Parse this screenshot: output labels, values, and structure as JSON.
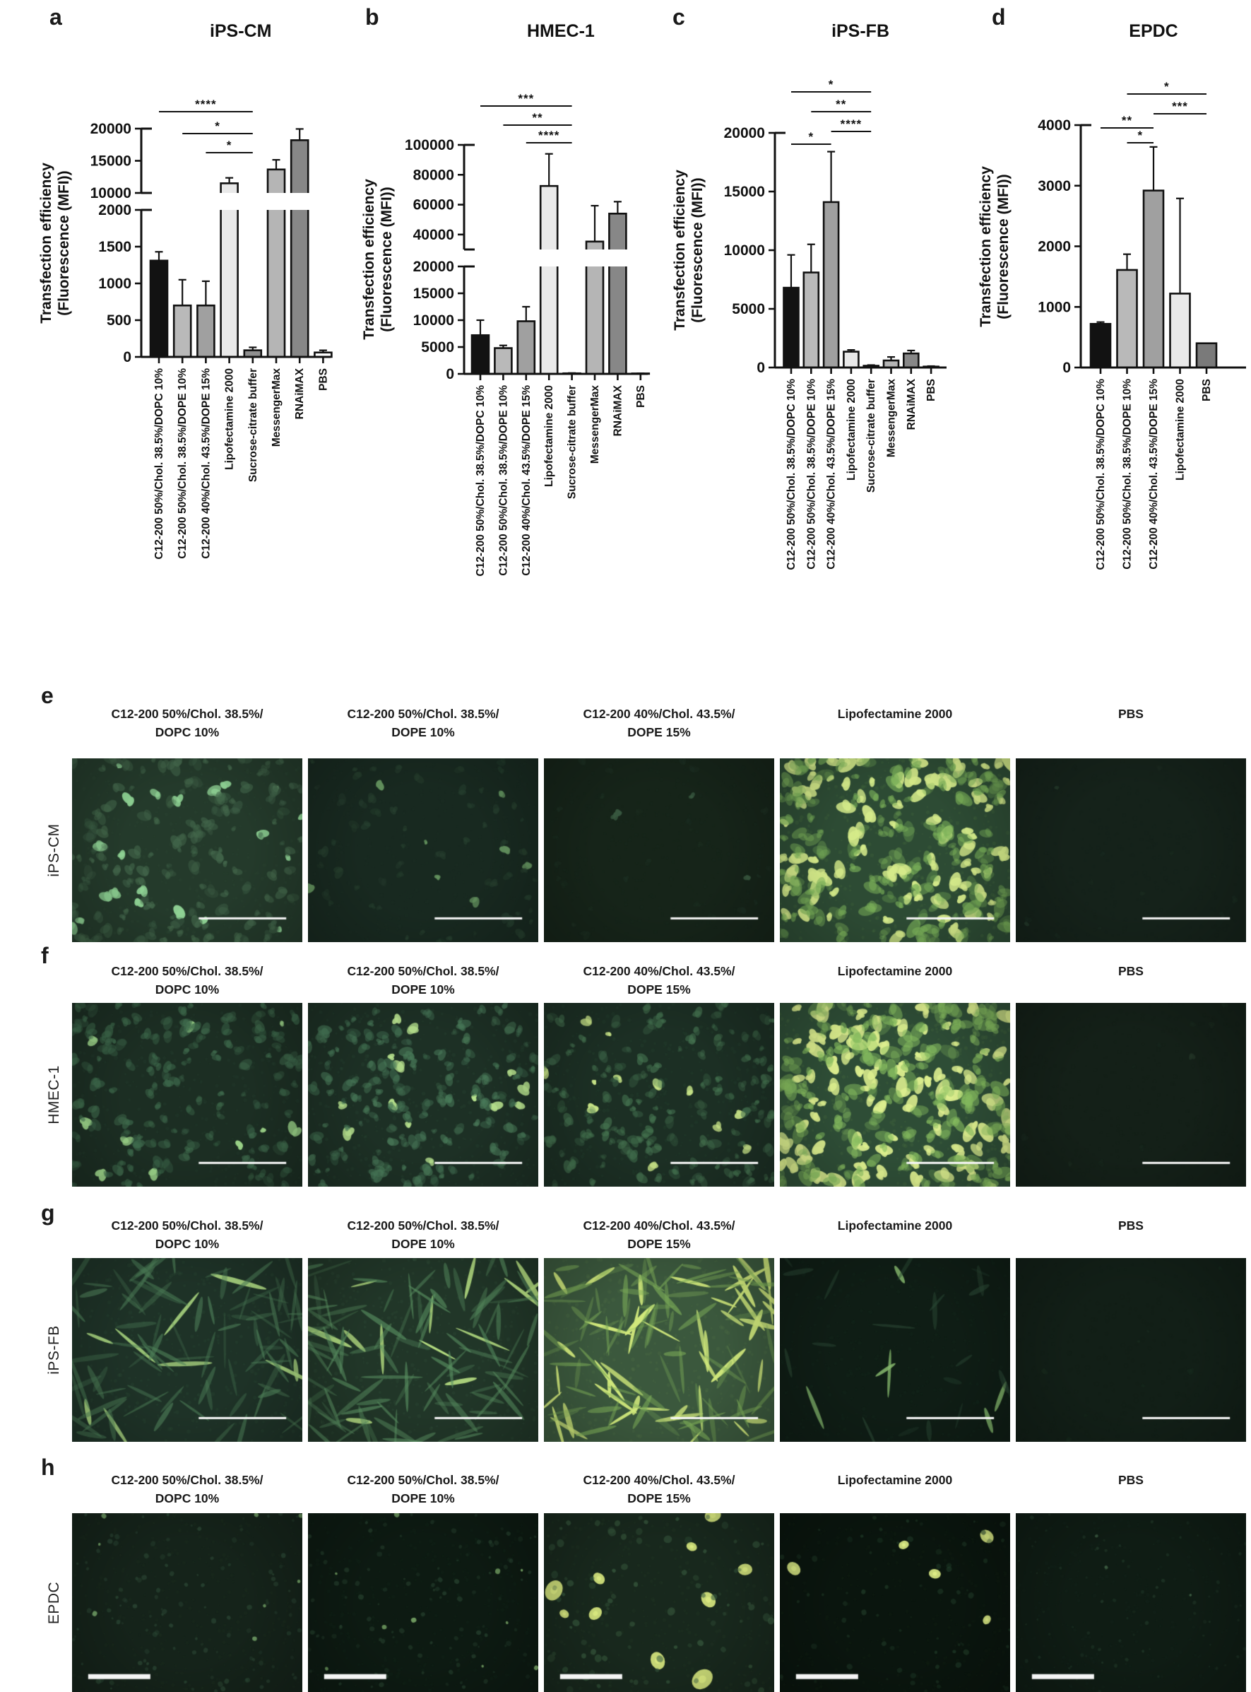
{
  "chart_data": [
    {
      "type": "bar",
      "letter": "a",
      "title": "iPS-CM",
      "ylabel_line1": "Transfection efficiency",
      "ylabel_line2": "(Fluorescence (MFI))",
      "categories": [
        "C12-200 50%/Chol. 38.5%/DOPC 10%",
        "C12-200 50%/Chol. 38.5%/DOPE 10%",
        "C12-200 40%/Chol. 43.5%/DOPE 15%",
        "Lipofectamine 2000",
        "Sucrose-citrate buffer",
        "MessengerMax",
        "RNAiMAX",
        "PBS"
      ],
      "values": [
        1310,
        700,
        700,
        11500,
        90,
        13650,
        18200,
        60
      ],
      "errors_upper": [
        120,
        350,
        330,
        850,
        40,
        1500,
        1750,
        30
      ],
      "bar_colors": [
        "#121212",
        "#b9b9b9",
        "#a0a0a0",
        "#e9e9e9",
        "#8f8f8f",
        "#b5b5b5",
        "#878787",
        "#ffffff"
      ],
      "axis": {
        "broken": true,
        "lower": {
          "max": 2000,
          "ticks": [
            0,
            500,
            1000,
            1500,
            2000
          ]
        },
        "upper": {
          "base": 10000,
          "max": 20000,
          "ticks": [
            10000,
            15000,
            20000
          ]
        }
      },
      "significance": [
        {
          "i": 0,
          "j": 4,
          "stars": "****"
        },
        {
          "i": 1,
          "j": 4,
          "stars": "*"
        },
        {
          "i": 2,
          "j": 4,
          "stars": "*"
        }
      ]
    },
    {
      "type": "bar",
      "letter": "b",
      "title": "HMEC-1",
      "ylabel_line1": "Transfection efficiency",
      "ylabel_line2": "(Fluorescence (MFI))",
      "categories": [
        "C12-200 50%/Chol. 38.5%/DOPC 10%",
        "C12-200 50%/Chol. 38.5%/DOPE 10%",
        "C12-200 40%/Chol. 43.5%/DOPE 15%",
        "Lipofectamine 2000",
        "Sucrose-citrate buffer",
        "MessengerMax",
        "RNAiMAX",
        "PBS"
      ],
      "values": [
        7200,
        4800,
        9800,
        72500,
        100,
        35300,
        54000,
        80
      ],
      "errors_upper": [
        2800,
        500,
        2700,
        21500,
        60,
        24000,
        8000,
        40
      ],
      "bar_colors": [
        "#121212",
        "#b9b9b9",
        "#a0a0a0",
        "#e9e9e9",
        "#8f8f8f",
        "#b5b5b5",
        "#878787",
        "#ffffff"
      ],
      "axis": {
        "broken": true,
        "lower": {
          "max": 20000,
          "ticks": [
            0,
            5000,
            10000,
            15000,
            20000
          ]
        },
        "upper": {
          "base": 30000,
          "max": 100000,
          "ticks": [
            40000,
            60000,
            80000,
            100000
          ]
        }
      },
      "significance": [
        {
          "i": 0,
          "j": 4,
          "stars": "***"
        },
        {
          "i": 1,
          "j": 4,
          "stars": "**"
        },
        {
          "i": 2,
          "j": 4,
          "stars": "****"
        }
      ]
    },
    {
      "type": "bar",
      "letter": "c",
      "title": "iPS-FB",
      "ylabel_line1": "Transfection efficiency",
      "ylabel_line2": "(Fluorescence (MFI))",
      "categories": [
        "C12-200 50%/Chol. 38.5%/DOPC 10%",
        "C12-200 50%/Chol. 38.5%/DOPE 10%",
        "C12-200 40%/Chol. 43.5%/DOPE 15%",
        "Lipofectamine 2000",
        "Sucrose-citrate buffer",
        "MessengerMax",
        "RNAiMAX",
        "PBS"
      ],
      "values": [
        6800,
        8100,
        14100,
        1350,
        150,
        600,
        1200,
        80
      ],
      "errors_upper": [
        2800,
        2400,
        4300,
        150,
        60,
        300,
        250,
        40
      ],
      "bar_colors": [
        "#121212",
        "#b9b9b9",
        "#a0a0a0",
        "#e9e9e9",
        "#8f8f8f",
        "#b5b5b5",
        "#878787",
        "#ffffff"
      ],
      "axis": {
        "broken": false,
        "max": 20000,
        "ticks": [
          0,
          5000,
          10000,
          15000,
          20000
        ]
      },
      "significance": [
        {
          "i": 0,
          "j": 4,
          "stars": "*"
        },
        {
          "i": 1,
          "j": 4,
          "stars": "**"
        },
        {
          "i": 2,
          "j": 4,
          "stars": "****"
        },
        {
          "i": 0,
          "j": 2,
          "stars": "*"
        }
      ]
    },
    {
      "type": "bar",
      "letter": "d",
      "title": "EPDC",
      "ylabel_line1": "Transfection efficiency",
      "ylabel_line2": "(Fluorescence (MFI))",
      "categories": [
        "C12-200 50%/Chol. 38.5%/DOPC 10%",
        "C12-200 50%/Chol. 38.5%/DOPE 10%",
        "C12-200 40%/Chol. 43.5%/DOPE 15%",
        "Lipofectamine 2000",
        "PBS"
      ],
      "values": [
        720,
        1610,
        2920,
        1220,
        400
      ],
      "errors_upper": [
        30,
        260,
        720,
        1570,
        0
      ],
      "bar_colors": [
        "#121212",
        "#b9b9b9",
        "#a0a0a0",
        "#e9e9e9",
        "#7a7a7a"
      ],
      "axis": {
        "broken": false,
        "max": 4000,
        "ticks": [
          0,
          1000,
          2000,
          3000,
          4000
        ]
      },
      "significance": [
        {
          "i": 1,
          "j": 4,
          "stars": "*"
        },
        {
          "i": 2,
          "j": 4,
          "stars": "***"
        },
        {
          "i": 0,
          "j": 2,
          "stars": "**"
        },
        {
          "i": 1,
          "j": 2,
          "stars": "*"
        }
      ]
    }
  ],
  "microscopy": {
    "column_headers": [
      {
        "line1": "C12-200 50%/Chol. 38.5%/",
        "line2": "DOPC 10%"
      },
      {
        "line1": "C12-200 50%/Chol. 38.5%/",
        "line2": "DOPE 10%"
      },
      {
        "line1": "C12-200 40%/Chol. 43.5%/",
        "line2": "DOPE 15%"
      },
      {
        "line1": "Lipofectamine 2000",
        "line2": ""
      },
      {
        "line1": "PBS",
        "line2": ""
      }
    ],
    "rows": [
      {
        "letter": "e",
        "label": "iPS-CM",
        "scalebar_style": "thin",
        "panels": [
          {
            "bg": "#243a2b",
            "cells": "#44684c",
            "bright": "#8ed193",
            "count": 170,
            "bcount": 22,
            "shape": "blob",
            "smin": 5,
            "smax": 14
          },
          {
            "bg": "#182920",
            "cells": "#27402f",
            "bright": "#63925e",
            "count": 70,
            "bcount": 8,
            "shape": "blob",
            "smin": 4,
            "smax": 11
          },
          {
            "bg": "#162419",
            "cells": "#1d3023",
            "bright": "#38573f",
            "count": 30,
            "bcount": 4,
            "shape": "blob",
            "smin": 4,
            "smax": 9
          },
          {
            "bg": "#2d4b34",
            "cells": "#7cb25a",
            "bright": "#d5eb8a",
            "count": 240,
            "bcount": 90,
            "shape": "dense",
            "smin": 6,
            "smax": 15
          },
          {
            "bg": "#15221a",
            "cells": "#1b2c21",
            "bright": "#24382a",
            "count": 14,
            "bcount": 2,
            "shape": "blob",
            "smin": 3,
            "smax": 7
          }
        ]
      },
      {
        "letter": "f",
        "label": "HMEC-1",
        "scalebar_style": "thin",
        "panels": [
          {
            "bg": "#1c2e23",
            "cells": "#3f6b4d",
            "bright": "#9cd489",
            "count": 160,
            "bcount": 10,
            "shape": "blob",
            "smin": 5,
            "smax": 13
          },
          {
            "bg": "#1d3025",
            "cells": "#497a59",
            "bright": "#b6e18d",
            "count": 170,
            "bcount": 14,
            "shape": "blob",
            "smin": 5,
            "smax": 13
          },
          {
            "bg": "#1c2f24",
            "cells": "#457350",
            "bright": "#c8e487",
            "count": 160,
            "bcount": 12,
            "shape": "blob",
            "smin": 5,
            "smax": 13
          },
          {
            "bg": "#2e4d36",
            "cells": "#86bc5f",
            "bright": "#dcee8e",
            "count": 260,
            "bcount": 100,
            "shape": "dense",
            "smin": 6,
            "smax": 16
          },
          {
            "bg": "#142018",
            "cells": "#1a2a1f",
            "bright": "#223426",
            "count": 10,
            "bcount": 1,
            "shape": "blob",
            "smin": 3,
            "smax": 7
          }
        ]
      },
      {
        "letter": "g",
        "label": "iPS-FB",
        "scalebar_style": "thin",
        "panels": [
          {
            "bg": "#1e3227",
            "cells": "#4e8059",
            "bright": "#a9d57f",
            "count": 95,
            "bcount": 9,
            "shape": "spindle",
            "smin": 10,
            "smax": 26
          },
          {
            "bg": "#213628",
            "cells": "#5a9162",
            "bright": "#b8e183",
            "count": 105,
            "bcount": 13,
            "shape": "spindle",
            "smin": 11,
            "smax": 28
          },
          {
            "bg": "#3b583d",
            "cells": "#7cab58",
            "bright": "#d0e87b",
            "count": 120,
            "bcount": 45,
            "shape": "spindle",
            "smin": 9,
            "smax": 24
          },
          {
            "bg": "#0f1d15",
            "cells": "#2c4a36",
            "bright": "#85b86d",
            "count": 26,
            "bcount": 6,
            "shape": "spindle",
            "smin": 8,
            "smax": 22
          },
          {
            "bg": "#121f17",
            "cells": "#182a1e",
            "bright": "#20331f",
            "count": 8,
            "bcount": 0,
            "shape": "blob",
            "smin": 3,
            "smax": 7
          }
        ]
      },
      {
        "letter": "h",
        "label": "EPDC",
        "scalebar_style": "thick",
        "panels": [
          {
            "bg": "#15231a",
            "cells": "#2f4d39",
            "bright": "#6f9c64",
            "count": 130,
            "bcount": 8,
            "shape": "dot",
            "smin": 3,
            "smax": 8
          },
          {
            "bg": "#0d1a12",
            "cells": "#2b4834",
            "bright": "#7aa968",
            "count": 120,
            "bcount": 10,
            "shape": "dot",
            "smin": 3,
            "smax": 8
          },
          {
            "bg": "#18281d",
            "cells": "#3c6042",
            "bright": "#d9e980",
            "count": 100,
            "bcount": 10,
            "shape": "dot",
            "smin": 4,
            "smax": 12,
            "bigBright": true
          },
          {
            "bg": "#0a150e",
            "cells": "#23402b",
            "bright": "#ddec85",
            "count": 80,
            "bcount": 5,
            "shape": "dot",
            "smin": 3,
            "smax": 9,
            "bigBright": true
          },
          {
            "bg": "#0f1c14",
            "cells": "#253e2d",
            "bright": "#3b5b41",
            "count": 90,
            "bcount": 3,
            "shape": "dot",
            "smin": 2,
            "smax": 6
          }
        ]
      }
    ]
  }
}
